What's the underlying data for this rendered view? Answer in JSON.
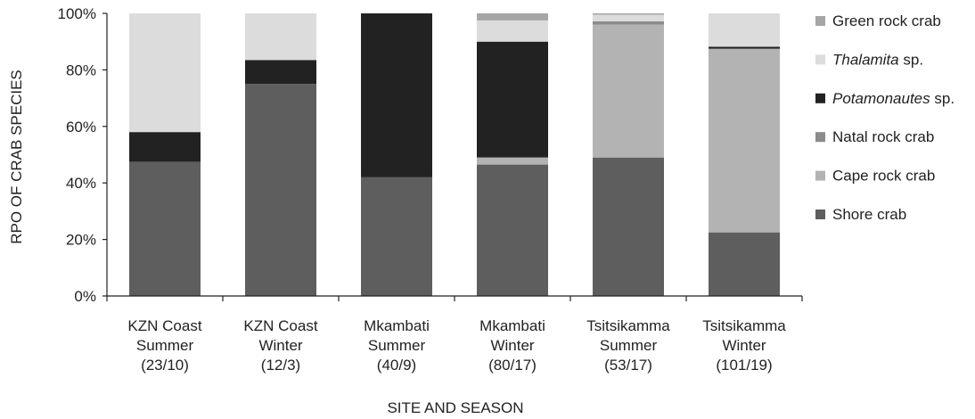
{
  "chart_data": {
    "type": "bar",
    "stacked": true,
    "normalized": true,
    "ylabel": "RPO OF CRAB SPECIES",
    "xlabel": "SITE AND SEASON",
    "ylim": [
      0,
      100
    ],
    "yticks": [
      "0%",
      "20%",
      "40%",
      "60%",
      "80%",
      "100%"
    ],
    "grid": false,
    "legend_position": "right",
    "categories": [
      [
        "KZN Coast",
        "Summer",
        "(23/10)"
      ],
      [
        "KZN Coast",
        "Winter",
        "(12/3)"
      ],
      [
        "Mkambati",
        "Summer",
        "(40/9)"
      ],
      [
        "Mkambati",
        "Winter",
        "(80/17)"
      ],
      [
        "Tsitsikamma",
        "Summer",
        "(53/17)"
      ],
      [
        "Tsitsikamma",
        "Winter",
        "(101/19)"
      ]
    ],
    "series": [
      {
        "name": "Shore crab",
        "color": "#5e5e5e",
        "values": [
          47.5,
          75,
          42,
          46.5,
          49,
          22.5
        ]
      },
      {
        "name": "Cape rock crab",
        "color": "#b3b3b3",
        "values": [
          0,
          0,
          0,
          2.5,
          47,
          65
        ]
      },
      {
        "name": "Natal rock crab",
        "color": "#8c8c8c",
        "values": [
          0,
          0,
          0,
          0,
          1.2,
          0
        ]
      },
      {
        "name": "Potamonautes sp.",
        "color": "#222222",
        "values": [
          10.5,
          8.5,
          58,
          41,
          0,
          0.7
        ]
      },
      {
        "name": "Thalamita sp.",
        "color": "#dcdcdc",
        "values": [
          42,
          16.5,
          0,
          7.5,
          2.3,
          11.8
        ]
      },
      {
        "name": "Green rock crab",
        "color": "#a6a6a6",
        "values": [
          0,
          0,
          0,
          2.5,
          0.5,
          0
        ]
      }
    ],
    "legend": [
      {
        "prefix": "",
        "italic": "",
        "suffix": "Green rock crab"
      },
      {
        "prefix": "",
        "italic": "Thalamita",
        "suffix": " sp."
      },
      {
        "prefix": "",
        "italic": "Potamonautes",
        "suffix": " sp."
      },
      {
        "prefix": "",
        "italic": "",
        "suffix": "Natal rock crab"
      },
      {
        "prefix": "",
        "italic": "",
        "suffix": "Cape rock crab"
      },
      {
        "prefix": "",
        "italic": "",
        "suffix": "Shore crab"
      }
    ]
  }
}
